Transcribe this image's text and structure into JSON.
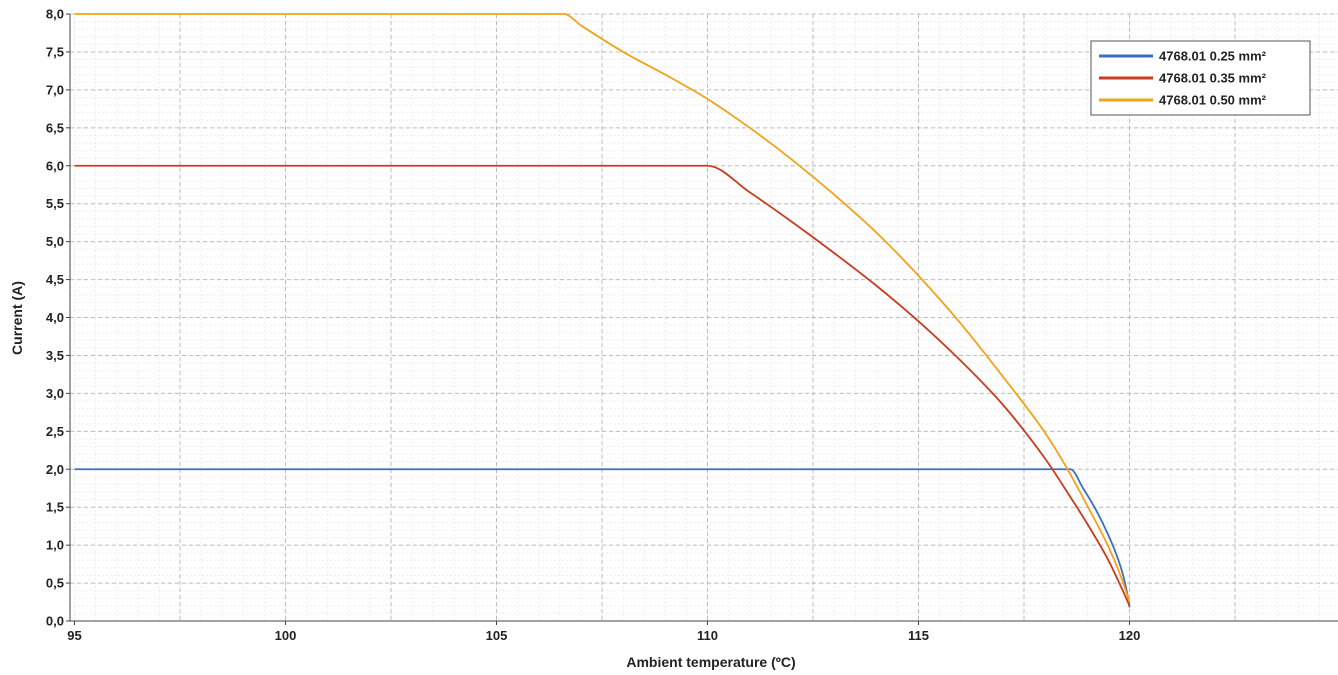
{
  "chart_data": {
    "type": "line",
    "title": "",
    "xlabel": "Ambient temperature (ºC)",
    "ylabel": "Current (A)",
    "xlim": [
      95,
      125
    ],
    "ylim": [
      0,
      8
    ],
    "x_ticks": [
      95,
      100,
      105,
      110,
      115,
      120
    ],
    "x_tick_labels": [
      "95",
      "100",
      "105",
      "110",
      "115",
      "120"
    ],
    "y_ticks": [
      0,
      0.5,
      1,
      1.5,
      2,
      2.5,
      3,
      3.5,
      4,
      4.5,
      5,
      5.5,
      6,
      6.5,
      7,
      7.5,
      8
    ],
    "y_tick_labels": [
      "0,0",
      "0,5",
      "1,0",
      "1,5",
      "2,0",
      "2,5",
      "3,0",
      "3,5",
      "4,0",
      "4,5",
      "5,0",
      "5,5",
      "6,0",
      "6,5",
      "7,0",
      "7,5",
      "8,0"
    ],
    "grid": true,
    "legend_position": "top-right",
    "series": [
      {
        "name": "4768.01 0.25 mm²",
        "color": "#3a6fc4",
        "x": [
          95,
          118.6,
          118.9,
          119.2,
          119.5,
          119.7,
          119.85,
          119.95,
          120
        ],
        "y": [
          2,
          2,
          1.75,
          1.47,
          1.13,
          0.86,
          0.6,
          0.35,
          0.18
        ]
      },
      {
        "name": "4768.01 0.35 mm²",
        "color": "#cc3b1f",
        "x": [
          95,
          110,
          111,
          112,
          113,
          114,
          115,
          116,
          117,
          118,
          118.5,
          119,
          119.5,
          119.8,
          120
        ],
        "y": [
          6,
          6,
          5.65,
          5.26,
          4.85,
          4.42,
          3.95,
          3.43,
          2.85,
          2.14,
          1.72,
          1.28,
          0.8,
          0.45,
          0.2
        ]
      },
      {
        "name": "4768.01 0.50 mm²",
        "color": "#f5a21b",
        "x": [
          95,
          106.6,
          107,
          108,
          109,
          110,
          111,
          112,
          113,
          114,
          115,
          116,
          117,
          118,
          118.5,
          119,
          119.5,
          119.8,
          120
        ],
        "y": [
          8,
          8,
          7.85,
          7.5,
          7.2,
          6.88,
          6.5,
          6.08,
          5.62,
          5.12,
          4.55,
          3.92,
          3.22,
          2.48,
          2.03,
          1.52,
          0.98,
          0.58,
          0.25
        ]
      }
    ]
  }
}
